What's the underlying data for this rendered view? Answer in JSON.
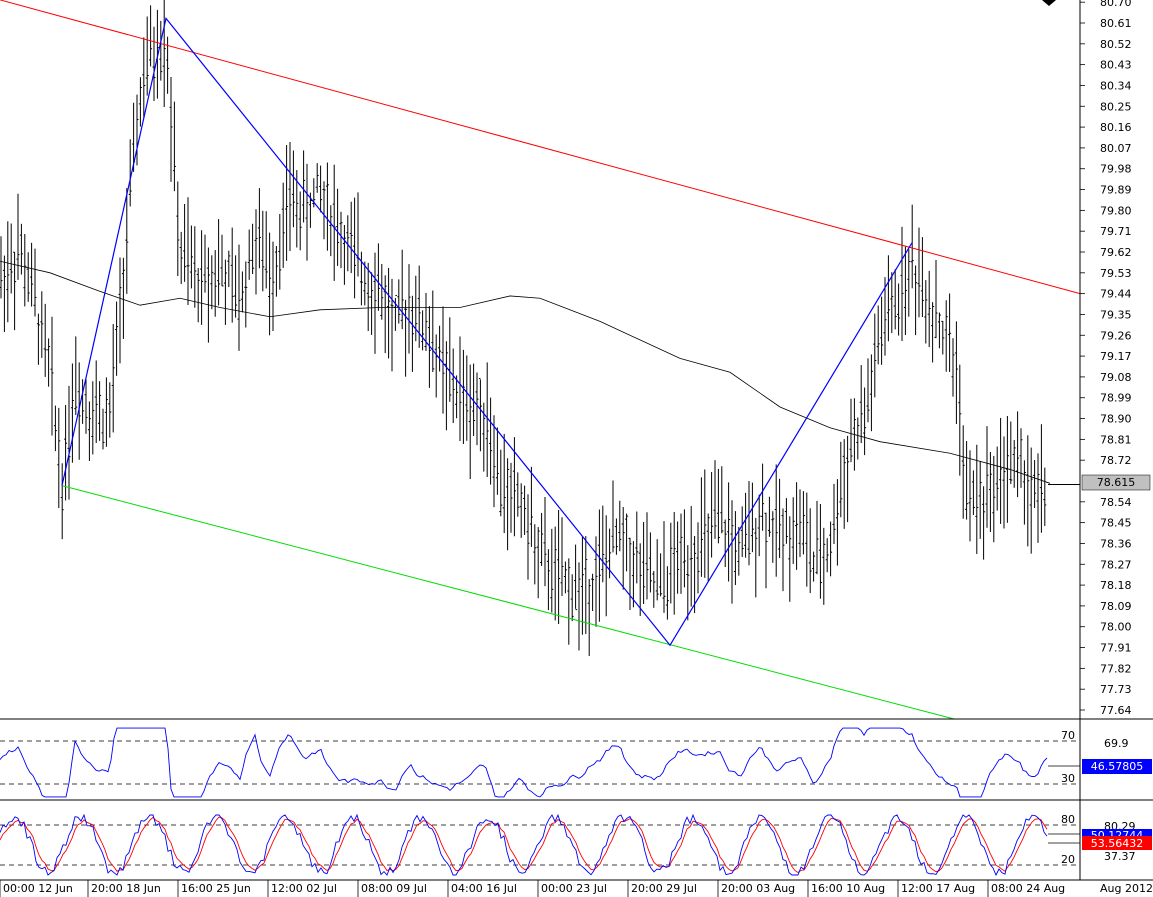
{
  "chart_data": {
    "type": "candlestick",
    "main": {
      "yticks": [
        "80.70",
        "80.61",
        "80.52",
        "80.43",
        "80.34",
        "80.25",
        "80.16",
        "80.07",
        "79.98",
        "79.89",
        "79.80",
        "79.71",
        "79.62",
        "79.53",
        "79.44",
        "79.35",
        "79.26",
        "79.17",
        "79.08",
        "78.99",
        "78.90",
        "78.81",
        "78.72",
        "78.54",
        "78.45",
        "78.36",
        "78.27",
        "78.18",
        "78.09",
        "78.00",
        "77.91",
        "77.82",
        "77.73",
        "77.64"
      ],
      "ylim": [
        77.6,
        80.7
      ],
      "current_price": "78.615",
      "current_price_value": 78.615,
      "trendlines": [
        {
          "name": "upper-channel",
          "color": "#ff0000",
          "from": [
            0,
            80.71
          ],
          "to": [
            1080,
            79.44
          ]
        },
        {
          "name": "lower-channel",
          "color": "#00dd00",
          "from": [
            62,
            78.61
          ],
          "to": [
            955,
            77.6
          ]
        }
      ],
      "zigzag": {
        "color": "#0000ff",
        "points": [
          [
            62,
            78.61
          ],
          [
            166,
            80.63
          ],
          [
            670,
            77.92
          ],
          [
            912,
            79.66
          ]
        ]
      },
      "moving_average": {
        "color": "#000000",
        "points": [
          [
            0,
            79.58
          ],
          [
            50,
            79.53
          ],
          [
            100,
            79.45
          ],
          [
            140,
            79.39
          ],
          [
            180,
            79.42
          ],
          [
            220,
            79.38
          ],
          [
            270,
            79.34
          ],
          [
            320,
            79.37
          ],
          [
            380,
            79.38
          ],
          [
            460,
            79.38
          ],
          [
            510,
            79.43
          ],
          [
            540,
            79.42
          ],
          [
            600,
            79.32
          ],
          [
            680,
            79.16
          ],
          [
            730,
            79.1
          ],
          [
            780,
            78.95
          ],
          [
            830,
            78.86
          ],
          [
            880,
            78.8
          ],
          [
            950,
            78.75
          ],
          [
            1010,
            78.68
          ],
          [
            1050,
            78.62
          ]
        ]
      }
    },
    "rsi": {
      "levels": [
        "70",
        "30"
      ],
      "scale_label": "69.9",
      "current_value": "46.57805",
      "color": "#0000ff"
    },
    "stochastic": {
      "levels": [
        "80",
        "20"
      ],
      "scale_labels": [
        "80.29",
        "37.37"
      ],
      "current_values": [
        "50.12744",
        "53.56432"
      ],
      "colors": [
        "#0000ff",
        "#ff0000"
      ]
    },
    "xticks": [
      "00:00 12 Jun",
      "20:00 18 Jun",
      "16:00 25 Jun",
      "12:00 02 Jul",
      "08:00 09 Jul",
      "04:00 16 Jul",
      "00:00 23 Jul",
      "20:00 29 Jul",
      "20:00 03 Aug",
      "16:00 10 Aug",
      "12:00 17 Aug",
      "08:00 24 Aug"
    ],
    "x_scale_label": "Aug 2012"
  }
}
